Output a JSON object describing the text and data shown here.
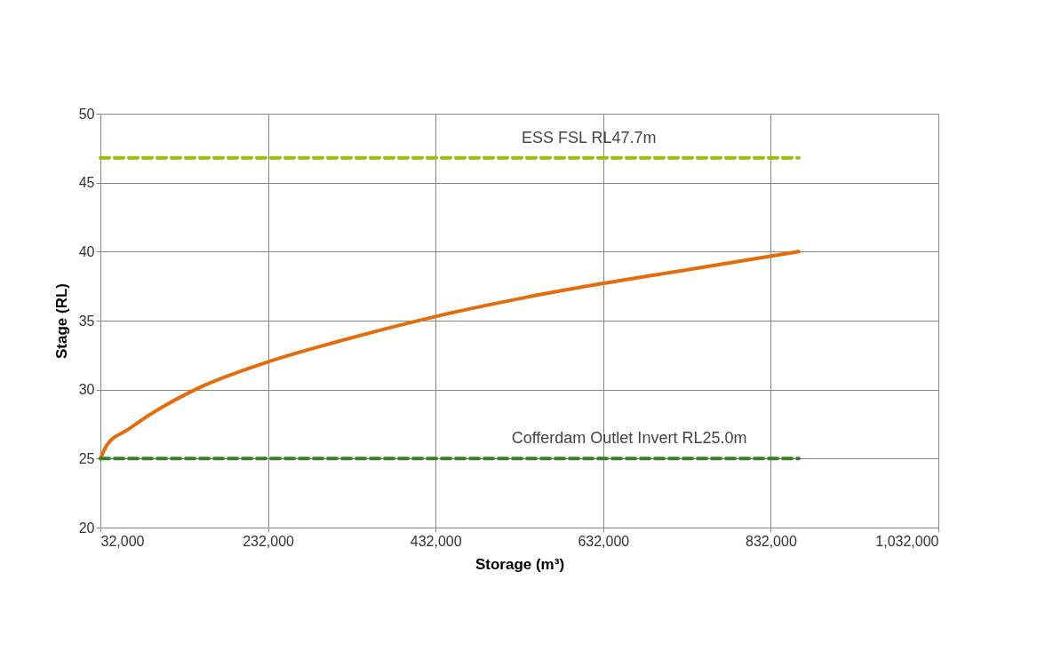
{
  "chart_data": {
    "type": "line",
    "xlabel": "Storage (m³)",
    "ylabel": "Stage (RL)",
    "xlim": [
      32000,
      1032000
    ],
    "xticks": [
      {
        "value": 32000,
        "label": "32,000"
      },
      {
        "value": 232000,
        "label": "232,000"
      },
      {
        "value": 432000,
        "label": "432,000"
      },
      {
        "value": 632000,
        "label": "632,000"
      },
      {
        "value": 832000,
        "label": "832,000"
      },
      {
        "value": 1032000,
        "label": "1,032,000"
      }
    ],
    "ylim": [
      20,
      50
    ],
    "yticks": [
      20,
      25,
      30,
      35,
      40,
      45,
      50
    ],
    "grid": true,
    "series": [
      {
        "color": "#e46c0a",
        "line_style": "solid",
        "x": [
          32000,
          40000,
          64900,
          91400,
          148600,
          231400,
          316200,
          432000,
          541000,
          632000,
          734000,
          865500
        ],
        "values": [
          25,
          26.0,
          27.1,
          28.2,
          30.1,
          32.0,
          33.5,
          35.3,
          36.7,
          37.7,
          38.7,
          40.0
        ]
      },
      {
        "color": "#9bbb0f",
        "line_style": "dashed",
        "x": [
          32000,
          865500
        ],
        "values": [
          46.8,
          46.8
        ]
      },
      {
        "color": "#3a7d22",
        "line_style": "dashed",
        "x": [
          32000,
          865500
        ],
        "values": [
          25,
          25
        ]
      }
    ],
    "annotations": [
      {
        "text": "ESS FSL RL47.7m",
        "x": 615000,
        "y": 46.8
      },
      {
        "text": "Cofferdam Outlet Invert RL25.0m",
        "x": 663000,
        "y": 25
      }
    ]
  }
}
